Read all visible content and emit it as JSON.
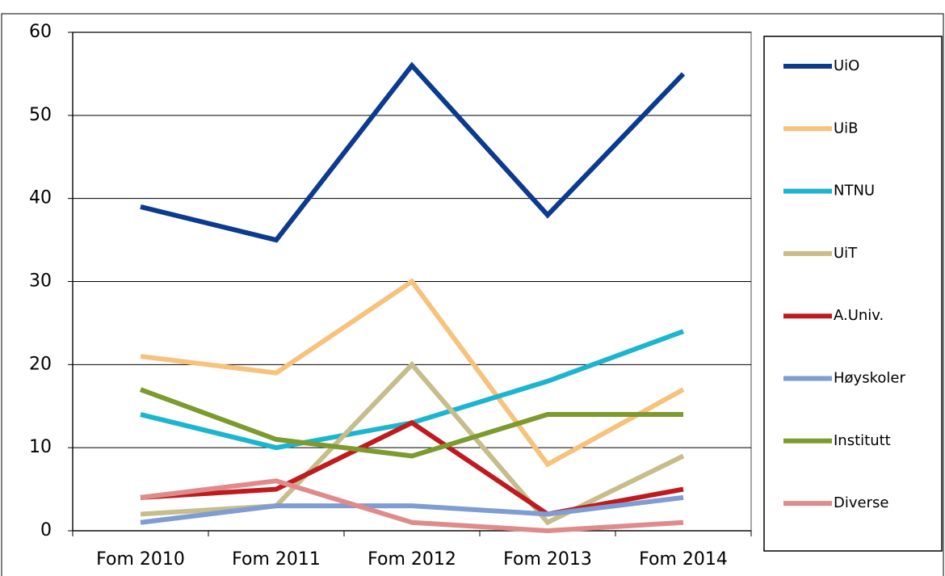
{
  "chart_data": {
    "type": "line",
    "categories": [
      "Fom 2010",
      "Fom 2011",
      "Fom 2012",
      "Fom 2013",
      "Fom 2014"
    ],
    "series": [
      {
        "name": "UiO",
        "color": "#0b3a8e",
        "values": [
          39,
          35,
          56,
          38,
          55
        ]
      },
      {
        "name": "UiB",
        "color": "#f7c27c",
        "values": [
          21,
          19,
          30,
          8,
          17
        ]
      },
      {
        "name": "NTNU",
        "color": "#1bb5cf",
        "values": [
          14,
          10,
          13,
          18,
          24
        ]
      },
      {
        "name": "UiT",
        "color": "#c6bd8b",
        "values": [
          2,
          3,
          20,
          1,
          9
        ]
      },
      {
        "name": "A.Univ.",
        "color": "#bf1b1f",
        "values": [
          4,
          5,
          13,
          2,
          5
        ]
      },
      {
        "name": "Høyskoler",
        "color": "#7f9cd3",
        "values": [
          1,
          3,
          3,
          2,
          4
        ]
      },
      {
        "name": "Institutt",
        "color": "#7d9a2f",
        "values": [
          17,
          11,
          9,
          14,
          14
        ]
      },
      {
        "name": "Diverse",
        "color": "#df8b8b",
        "values": [
          4,
          6,
          1,
          0,
          1
        ]
      }
    ],
    "ylim": [
      0,
      60
    ],
    "yticks": [
      0,
      10,
      20,
      30,
      40,
      50,
      60
    ],
    "grid": true
  }
}
